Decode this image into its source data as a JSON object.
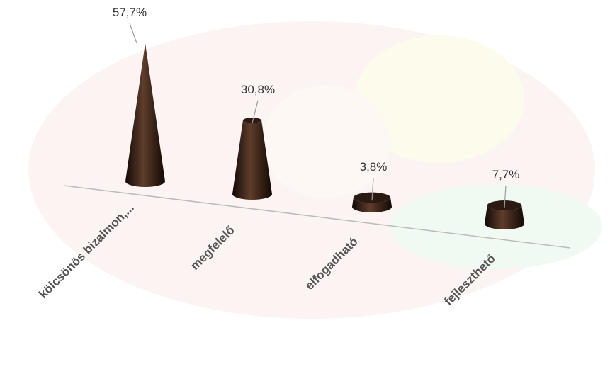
{
  "chart_data": {
    "type": "cone",
    "categories": [
      "kölcsönös bizalmon,...",
      "megfelelő",
      "elfogadható",
      "fejleszthető"
    ],
    "values": [
      57.7,
      30.8,
      3.8,
      7.7
    ],
    "value_labels": [
      "57,7%",
      "30,8%",
      "3,8%",
      "7,7%"
    ],
    "color": "#2b1a12"
  }
}
